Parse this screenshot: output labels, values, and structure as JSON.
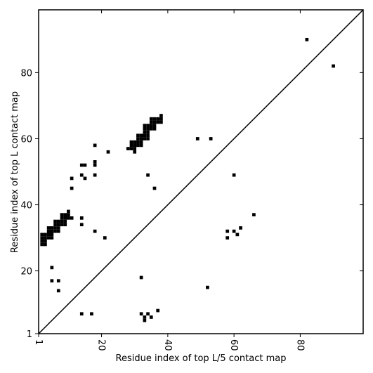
{
  "chart_data": {
    "type": "scatter",
    "title": "",
    "xlabel": "Residue index of top L/5 contact map",
    "ylabel": "Residue index of top L contact map",
    "xlim": [
      1,
      99
    ],
    "ylim": [
      1,
      99
    ],
    "x_ticks": [
      1,
      20,
      40,
      60,
      80
    ],
    "y_ticks": [
      1,
      20,
      40,
      60,
      80
    ],
    "diagonal_line": true,
    "marker_color": "#000000",
    "series": [
      {
        "values": [
          [
            82,
            90
          ],
          [
            90,
            82
          ],
          [
            49,
            60
          ],
          [
            53,
            60
          ],
          [
            60,
            49
          ],
          [
            22,
            56
          ],
          [
            18,
            58
          ],
          [
            18,
            53
          ],
          [
            18,
            52
          ],
          [
            18,
            49
          ],
          [
            14,
            52
          ],
          [
            15,
            52
          ],
          [
            11,
            48
          ],
          [
            15,
            48
          ],
          [
            14,
            49
          ],
          [
            11,
            45
          ],
          [
            34,
            49
          ],
          [
            36,
            45
          ],
          [
            14,
            36
          ],
          [
            14,
            34
          ],
          [
            18,
            32
          ],
          [
            21,
            30
          ],
          [
            66,
            37
          ],
          [
            62,
            33
          ],
          [
            58,
            32
          ],
          [
            60,
            32
          ],
          [
            58,
            30
          ],
          [
            61,
            31
          ],
          [
            5,
            21
          ],
          [
            5,
            17
          ],
          [
            7,
            17
          ],
          [
            7,
            14
          ],
          [
            32,
            18
          ],
          [
            52,
            15
          ],
          [
            14,
            7
          ],
          [
            17,
            7
          ],
          [
            32,
            7
          ],
          [
            34,
            7
          ],
          [
            33,
            6
          ],
          [
            33,
            5
          ],
          [
            35,
            6
          ],
          [
            37,
            8
          ],
          [
            30,
            56
          ],
          [
            28,
            57
          ],
          [
            29,
            57
          ],
          [
            29,
            58
          ],
          [
            30,
            58
          ],
          [
            29,
            59
          ],
          [
            30,
            59
          ],
          [
            30,
            57
          ],
          [
            31,
            58
          ],
          [
            32,
            58
          ],
          [
            31,
            59
          ],
          [
            32,
            59
          ],
          [
            31,
            60
          ],
          [
            32,
            60
          ],
          [
            31,
            61
          ],
          [
            32,
            61
          ],
          [
            33,
            60
          ],
          [
            34,
            60
          ],
          [
            33,
            61
          ],
          [
            34,
            61
          ],
          [
            33,
            62
          ],
          [
            34,
            62
          ],
          [
            33,
            63
          ],
          [
            34,
            63
          ],
          [
            33,
            64
          ],
          [
            34,
            64
          ],
          [
            35,
            63
          ],
          [
            36,
            63
          ],
          [
            35,
            64
          ],
          [
            36,
            64
          ],
          [
            35,
            65
          ],
          [
            36,
            65
          ],
          [
            35,
            66
          ],
          [
            36,
            66
          ],
          [
            37,
            65
          ],
          [
            38,
            65
          ],
          [
            37,
            66
          ],
          [
            38,
            66
          ],
          [
            38,
            67
          ],
          [
            2,
            28
          ],
          [
            3,
            28
          ],
          [
            2,
            29
          ],
          [
            3,
            29
          ],
          [
            2,
            30
          ],
          [
            3,
            30
          ],
          [
            2,
            31
          ],
          [
            3,
            31
          ],
          [
            4,
            30
          ],
          [
            5,
            30
          ],
          [
            4,
            31
          ],
          [
            5,
            31
          ],
          [
            4,
            32
          ],
          [
            5,
            32
          ],
          [
            4,
            33
          ],
          [
            5,
            33
          ],
          [
            6,
            32
          ],
          [
            7,
            32
          ],
          [
            6,
            33
          ],
          [
            7,
            33
          ],
          [
            6,
            34
          ],
          [
            7,
            34
          ],
          [
            6,
            35
          ],
          [
            7,
            35
          ],
          [
            8,
            34
          ],
          [
            9,
            34
          ],
          [
            8,
            35
          ],
          [
            9,
            35
          ],
          [
            8,
            36
          ],
          [
            9,
            36
          ],
          [
            8,
            37
          ],
          [
            9,
            37
          ],
          [
            10,
            36
          ],
          [
            11,
            36
          ],
          [
            10,
            37
          ],
          [
            10,
            38
          ]
        ]
      }
    ]
  }
}
